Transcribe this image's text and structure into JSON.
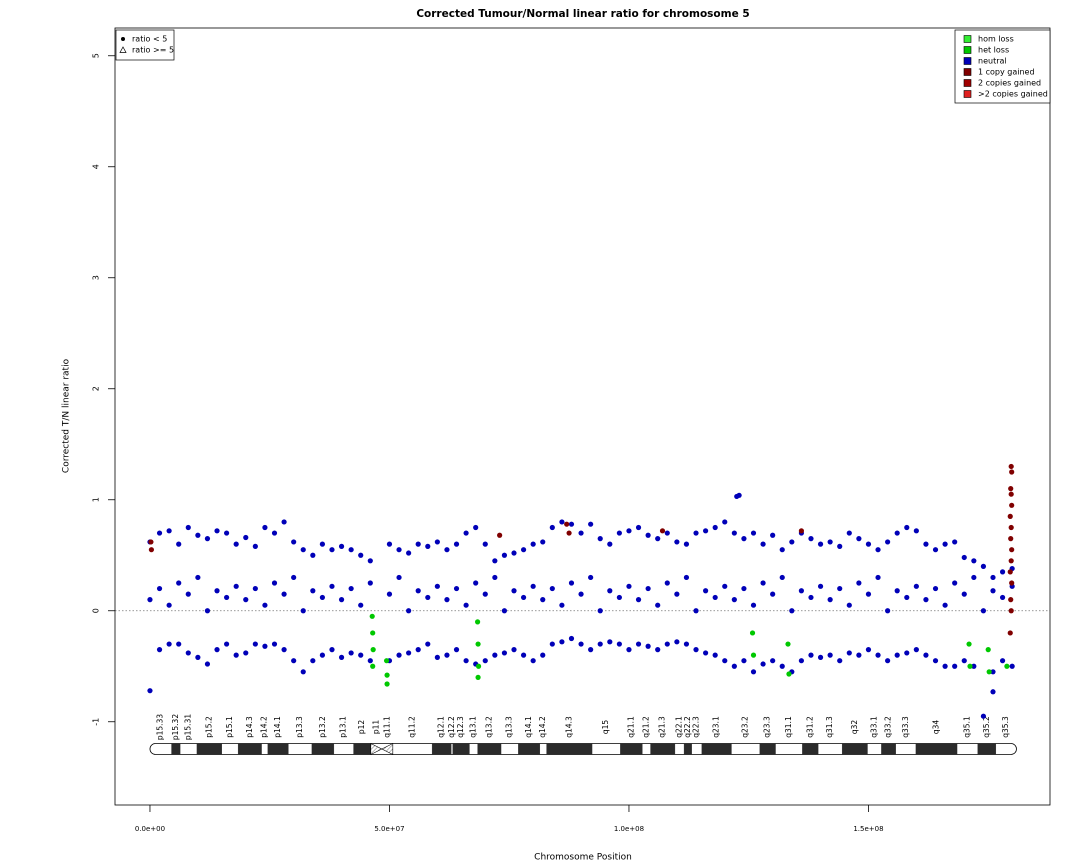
{
  "chart_data": {
    "type": "scatter",
    "title": "Corrected Tumour/Normal linear ratio for chromosome  5",
    "x_label": "Chromosome Position",
    "y_label": "Corrected T/N linear ratio",
    "xlim": [
      -7300000.0,
      187900000.0
    ],
    "ylim": [
      -1.75,
      5.25
    ],
    "xticks": [
      {
        "value": 0,
        "label": "0.0e+00"
      },
      {
        "value": 50000000.0,
        "label": "5.0e+07"
      },
      {
        "value": 100000000.0,
        "label": "1.0e+08"
      },
      {
        "value": 150000000.0,
        "label": "1.5e+08"
      }
    ],
    "yticks": [
      -1,
      0,
      1,
      2,
      3,
      4,
      5
    ],
    "hline": 0,
    "legend_position": "top-right",
    "shape_legend": {
      "position": "top-left",
      "items": [
        {
          "label": "ratio < 5",
          "shape": "dot"
        },
        {
          "label": "ratio >= 5",
          "shape": "triangle"
        }
      ]
    },
    "series": [
      {
        "name": "hom loss",
        "color": "#33ee33",
        "x": [],
        "values": []
      },
      {
        "name": "het loss",
        "color": "#00c800",
        "x": [
          46400000.0,
          46500000.0,
          46600000.0,
          46500000.0,
          49400000.0,
          49500000.0,
          49500000.0,
          68400000.0,
          68500000.0,
          68600000.0,
          68500000.0,
          125800000.0,
          126000000.0,
          133200000.0,
          133400000.0,
          171000000.0,
          171200000.0,
          175000000.0,
          175200000.0,
          178900000.0
        ],
        "values": [
          -0.05,
          -0.2,
          -0.35,
          -0.5,
          -0.45,
          -0.58,
          -0.66,
          -0.1,
          -0.3,
          -0.5,
          -0.6,
          -0.2,
          -0.4,
          -0.3,
          -0.57,
          -0.3,
          -0.5,
          -0.35,
          -0.55,
          -0.5
        ]
      },
      {
        "name": "neutral",
        "color": "#0000b8",
        "x": [
          0,
          2000000.0,
          4000000.0,
          6000000.0,
          8000000.0,
          10000000.0,
          12000000.0,
          14000000.0,
          16000000.0,
          18000000.0,
          20000000.0,
          22000000.0,
          24000000.0,
          26000000.0,
          28000000.0,
          30000000.0,
          32000000.0,
          34000000.0,
          36000000.0,
          38000000.0,
          40000000.0,
          42000000.0,
          44000000.0,
          46000000.0,
          50000000.0,
          52000000.0,
          54000000.0,
          56000000.0,
          58000000.0,
          60000000.0,
          62000000.0,
          64000000.0,
          66000000.0,
          68000000.0,
          70000000.0,
          72000000.0,
          74000000.0,
          76000000.0,
          78000000.0,
          80000000.0,
          82000000.0,
          84000000.0,
          86000000.0,
          88000000.0,
          90000000.0,
          92000000.0,
          94000000.0,
          96000000.0,
          98000000.0,
          100000000.0,
          102000000.0,
          104000000.0,
          106000000.0,
          108000000.0,
          110000000.0,
          112000000.0,
          114000000.0,
          116000000.0,
          118000000.0,
          120000000.0,
          122000000.0,
          124000000.0,
          126000000.0,
          128000000.0,
          130000000.0,
          132000000.0,
          134000000.0,
          136000000.0,
          138000000.0,
          140000000.0,
          142000000.0,
          144000000.0,
          146000000.0,
          148000000.0,
          150000000.0,
          152000000.0,
          154000000.0,
          156000000.0,
          158000000.0,
          160000000.0,
          162000000.0,
          164000000.0,
          166000000.0,
          168000000.0,
          170000000.0,
          172000000.0,
          174000000.0,
          176000000.0,
          178000000.0,
          180000000.0,
          0,
          2000000.0,
          4000000.0,
          6000000.0,
          8000000.0,
          10000000.0,
          12000000.0,
          14000000.0,
          16000000.0,
          18000000.0,
          20000000.0,
          22000000.0,
          24000000.0,
          26000000.0,
          28000000.0,
          30000000.0,
          32000000.0,
          34000000.0,
          36000000.0,
          38000000.0,
          40000000.0,
          42000000.0,
          44000000.0,
          46000000.0,
          50000000.0,
          52000000.0,
          54000000.0,
          56000000.0,
          58000000.0,
          60000000.0,
          62000000.0,
          64000000.0,
          66000000.0,
          68000000.0,
          70000000.0,
          72000000.0,
          74000000.0,
          76000000.0,
          78000000.0,
          80000000.0,
          82000000.0,
          84000000.0,
          86000000.0,
          88000000.0,
          90000000.0,
          92000000.0,
          94000000.0,
          96000000.0,
          98000000.0,
          100000000.0,
          102000000.0,
          104000000.0,
          106000000.0,
          108000000.0,
          110000000.0,
          112000000.0,
          114000000.0,
          116000000.0,
          118000000.0,
          120000000.0,
          122000000.0,
          124000000.0,
          126000000.0,
          128000000.0,
          130000000.0,
          132000000.0,
          134000000.0,
          136000000.0,
          138000000.0,
          140000000.0,
          142000000.0,
          144000000.0,
          146000000.0,
          148000000.0,
          150000000.0,
          152000000.0,
          154000000.0,
          156000000.0,
          158000000.0,
          160000000.0,
          162000000.0,
          164000000.0,
          166000000.0,
          168000000.0,
          170000000.0,
          172000000.0,
          174000000.0,
          176000000.0,
          178000000.0,
          180000000.0,
          0,
          2000000.0,
          4000000.0,
          6000000.0,
          8000000.0,
          10000000.0,
          12000000.0,
          14000000.0,
          16000000.0,
          18000000.0,
          20000000.0,
          22000000.0,
          24000000.0,
          26000000.0,
          28000000.0,
          30000000.0,
          32000000.0,
          34000000.0,
          36000000.0,
          38000000.0,
          40000000.0,
          42000000.0,
          44000000.0,
          46000000.0,
          50000000.0,
          52000000.0,
          54000000.0,
          56000000.0,
          58000000.0,
          60000000.0,
          62000000.0,
          64000000.0,
          66000000.0,
          68000000.0,
          70000000.0,
          72000000.0,
          74000000.0,
          76000000.0,
          78000000.0,
          80000000.0,
          82000000.0,
          84000000.0,
          86000000.0,
          88000000.0,
          90000000.0,
          92000000.0,
          94000000.0,
          96000000.0,
          98000000.0,
          100000000.0,
          102000000.0,
          104000000.0,
          106000000.0,
          108000000.0,
          110000000.0,
          112000000.0,
          114000000.0,
          116000000.0,
          118000000.0,
          120000000.0,
          122000000.0,
          124000000.0,
          126000000.0,
          128000000.0,
          130000000.0,
          132000000.0,
          134000000.0,
          136000000.0,
          138000000.0,
          140000000.0,
          142000000.0,
          144000000.0,
          146000000.0,
          148000000.0,
          150000000.0,
          152000000.0,
          154000000.0,
          156000000.0,
          158000000.0,
          160000000.0,
          162000000.0,
          164000000.0,
          166000000.0,
          168000000.0,
          170000000.0,
          172000000.0,
          174000000.0,
          176000000.0,
          178000000.0,
          180000000.0,
          122500000.0,
          123000000.0,
          176000000.0
        ],
        "values": [
          0.62,
          0.7,
          0.72,
          0.6,
          0.75,
          0.68,
          0.65,
          0.72,
          0.7,
          0.6,
          0.66,
          0.58,
          0.75,
          0.7,
          0.8,
          0.62,
          0.55,
          0.5,
          0.6,
          0.55,
          0.58,
          0.55,
          0.5,
          0.45,
          0.6,
          0.55,
          0.52,
          0.6,
          0.58,
          0.62,
          0.55,
          0.6,
          0.7,
          0.75,
          0.6,
          0.45,
          0.5,
          0.52,
          0.55,
          0.6,
          0.62,
          0.75,
          0.8,
          0.78,
          0.7,
          0.78,
          0.65,
          0.6,
          0.7,
          0.72,
          0.75,
          0.68,
          0.65,
          0.7,
          0.62,
          0.6,
          0.7,
          0.72,
          0.75,
          0.8,
          0.7,
          0.65,
          0.7,
          0.6,
          0.68,
          0.55,
          0.62,
          0.7,
          0.65,
          0.6,
          0.62,
          0.58,
          0.7,
          0.65,
          0.6,
          0.55,
          0.62,
          0.7,
          0.75,
          0.72,
          0.6,
          0.55,
          0.6,
          0.62,
          0.48,
          0.45,
          0.4,
          0.3,
          0.35,
          0.38,
          -0.72,
          -0.35,
          -0.3,
          -0.3,
          -0.38,
          -0.42,
          -0.48,
          -0.35,
          -0.3,
          -0.4,
          -0.38,
          -0.3,
          -0.32,
          -0.3,
          -0.35,
          -0.45,
          -0.55,
          -0.45,
          -0.4,
          -0.35,
          -0.42,
          -0.38,
          -0.4,
          -0.45,
          -0.45,
          -0.4,
          -0.38,
          -0.35,
          -0.3,
          -0.42,
          -0.4,
          -0.35,
          -0.45,
          -0.48,
          -0.45,
          -0.4,
          -0.38,
          -0.35,
          -0.4,
          -0.45,
          -0.4,
          -0.3,
          -0.28,
          -0.25,
          -0.3,
          -0.35,
          -0.3,
          -0.28,
          -0.3,
          -0.35,
          -0.3,
          -0.32,
          -0.35,
          -0.3,
          -0.28,
          -0.3,
          -0.35,
          -0.38,
          -0.4,
          -0.45,
          -0.5,
          -0.45,
          -0.55,
          -0.48,
          -0.45,
          -0.5,
          -0.55,
          -0.45,
          -0.4,
          -0.42,
          -0.4,
          -0.45,
          -0.38,
          -0.4,
          -0.35,
          -0.4,
          -0.45,
          -0.4,
          -0.38,
          -0.35,
          -0.4,
          -0.45,
          -0.5,
          -0.5,
          -0.45,
          -0.5,
          -0.95,
          -0.55,
          -0.45,
          -0.5,
          0.1,
          0.2,
          0.05,
          0.25,
          0.15,
          0.3,
          0.0,
          0.18,
          0.12,
          0.22,
          0.1,
          0.2,
          0.05,
          0.25,
          0.15,
          0.3,
          0.0,
          0.18,
          0.12,
          0.22,
          0.1,
          0.2,
          0.05,
          0.25,
          0.15,
          0.3,
          0.0,
          0.18,
          0.12,
          0.22,
          0.1,
          0.2,
          0.05,
          0.25,
          0.15,
          0.3,
          0.0,
          0.18,
          0.12,
          0.22,
          0.1,
          0.2,
          0.05,
          0.25,
          0.15,
          0.3,
          0.0,
          0.18,
          0.12,
          0.22,
          0.1,
          0.2,
          0.05,
          0.25,
          0.15,
          0.3,
          0.0,
          0.18,
          0.12,
          0.22,
          0.1,
          0.2,
          0.05,
          0.25,
          0.15,
          0.3,
          0.0,
          0.18,
          0.12,
          0.22,
          0.1,
          0.2,
          0.05,
          0.25,
          0.15,
          0.3,
          0.0,
          0.18,
          0.12,
          0.22,
          0.1,
          0.2,
          0.05,
          0.25,
          0.15,
          0.3,
          0.0,
          0.18,
          0.12,
          0.22,
          1.03,
          1.04,
          -0.73
        ]
      },
      {
        "name": "1 copy gained",
        "color": "#800000",
        "x": [
          200000,
          300000,
          73000000.0,
          87000000.0,
          87500000.0,
          107000000.0,
          136000000.0,
          179800000.0,
          179900000.0,
          179700000.0,
          179800000.0,
          179900000.0,
          179600000.0,
          179800000.0,
          179700000.0,
          179900000.0,
          179800000.0,
          179600000.0,
          179900000.0,
          179700000.0,
          179800000.0,
          179600000.0
        ],
        "values": [
          0.62,
          0.55,
          0.68,
          0.78,
          0.7,
          0.72,
          0.72,
          1.3,
          1.25,
          1.1,
          1.05,
          0.95,
          0.85,
          0.75,
          0.65,
          0.55,
          0.45,
          0.35,
          0.25,
          0.1,
          0.0,
          -0.2
        ]
      },
      {
        "name": "2 copies gained",
        "color": "#a00000",
        "x": [],
        "values": []
      },
      {
        "name": ">2 copies gained",
        "color": "#e02020",
        "x": [],
        "values": []
      }
    ],
    "ideogram": {
      "bands": [
        {
          "name": "p15.33",
          "start": 0,
          "end": 4500000.0,
          "stain": "gneg"
        },
        {
          "name": "p15.32",
          "start": 4500000.0,
          "end": 6300000.0,
          "stain": "gpos"
        },
        {
          "name": "p15.31",
          "start": 6300000.0,
          "end": 9800000.0,
          "stain": "gneg"
        },
        {
          "name": "p15.2",
          "start": 9800000.0,
          "end": 15000000.0,
          "stain": "gpos"
        },
        {
          "name": "p15.1",
          "start": 15000000.0,
          "end": 18400000.0,
          "stain": "gneg"
        },
        {
          "name": "p14.3",
          "start": 18400000.0,
          "end": 23300000.0,
          "stain": "gpos"
        },
        {
          "name": "p14.2",
          "start": 23300000.0,
          "end": 24600000.0,
          "stain": "gneg"
        },
        {
          "name": "p14.1",
          "start": 24600000.0,
          "end": 28900000.0,
          "stain": "gpos"
        },
        {
          "name": "p13.3",
          "start": 28900000.0,
          "end": 33800000.0,
          "stain": "gneg"
        },
        {
          "name": "p13.2",
          "start": 33800000.0,
          "end": 38400000.0,
          "stain": "gpos"
        },
        {
          "name": "p13.1",
          "start": 38400000.0,
          "end": 42500000.0,
          "stain": "gneg"
        },
        {
          "name": "p12",
          "start": 42500000.0,
          "end": 46100000.0,
          "stain": "gpos"
        },
        {
          "name": "p11",
          "start": 46100000.0,
          "end": 48400000.0,
          "stain": "acen"
        },
        {
          "name": "q11.1",
          "start": 48400000.0,
          "end": 50700000.0,
          "stain": "acen"
        },
        {
          "name": "q11.2",
          "start": 50700000.0,
          "end": 58900000.0,
          "stain": "gneg"
        },
        {
          "name": "q12.1",
          "start": 58900000.0,
          "end": 62900000.0,
          "stain": "gpos"
        },
        {
          "name": "q12.2",
          "start": 62900000.0,
          "end": 63200000.0,
          "stain": "gneg"
        },
        {
          "name": "q12.3",
          "start": 63200000.0,
          "end": 66700000.0,
          "stain": "gpos"
        },
        {
          "name": "q13.1",
          "start": 66700000.0,
          "end": 68400000.0,
          "stain": "gneg"
        },
        {
          "name": "q13.2",
          "start": 68400000.0,
          "end": 73300000.0,
          "stain": "gpos"
        },
        {
          "name": "q13.3",
          "start": 73300000.0,
          "end": 76900000.0,
          "stain": "gneg"
        },
        {
          "name": "q14.1",
          "start": 76900000.0,
          "end": 81400000.0,
          "stain": "gpos"
        },
        {
          "name": "q14.2",
          "start": 81400000.0,
          "end": 82800000.0,
          "stain": "gneg"
        },
        {
          "name": "q14.3",
          "start": 82800000.0,
          "end": 92300000.0,
          "stain": "gpos"
        },
        {
          "name": "q15",
          "start": 92300000.0,
          "end": 98200000.0,
          "stain": "gneg"
        },
        {
          "name": "q21.1",
          "start": 98200000.0,
          "end": 102800000.0,
          "stain": "gpos"
        },
        {
          "name": "q21.2",
          "start": 102800000.0,
          "end": 104500000.0,
          "stain": "gneg"
        },
        {
          "name": "q21.3",
          "start": 104500000.0,
          "end": 109600000.0,
          "stain": "gpos"
        },
        {
          "name": "q22.1",
          "start": 109600000.0,
          "end": 111500000.0,
          "stain": "gneg"
        },
        {
          "name": "q22.2",
          "start": 111500000.0,
          "end": 113100000.0,
          "stain": "gpos"
        },
        {
          "name": "q22.3",
          "start": 113100000.0,
          "end": 115200000.0,
          "stain": "gneg"
        },
        {
          "name": "q23.1",
          "start": 115200000.0,
          "end": 121400000.0,
          "stain": "gpos"
        },
        {
          "name": "q23.2",
          "start": 121400000.0,
          "end": 127300000.0,
          "stain": "gneg"
        },
        {
          "name": "q23.3",
          "start": 127300000.0,
          "end": 130600000.0,
          "stain": "gpos"
        },
        {
          "name": "q31.1",
          "start": 130600000.0,
          "end": 136200000.0,
          "stain": "gneg"
        },
        {
          "name": "q31.2",
          "start": 136200000.0,
          "end": 139500000.0,
          "stain": "gpos"
        },
        {
          "name": "q31.3",
          "start": 139500000.0,
          "end": 144500000.0,
          "stain": "gneg"
        },
        {
          "name": "q32",
          "start": 144500000.0,
          "end": 149800000.0,
          "stain": "gpos"
        },
        {
          "name": "q33.1",
          "start": 149800000.0,
          "end": 152700000.0,
          "stain": "gneg"
        },
        {
          "name": "q33.2",
          "start": 152700000.0,
          "end": 155700000.0,
          "stain": "gpos"
        },
        {
          "name": "q33.3",
          "start": 155700000.0,
          "end": 159900000.0,
          "stain": "gneg"
        },
        {
          "name": "q34",
          "start": 159900000.0,
          "end": 168500000.0,
          "stain": "gpos"
        },
        {
          "name": "q35.1",
          "start": 168500000.0,
          "end": 172800000.0,
          "stain": "gneg"
        },
        {
          "name": "q35.2",
          "start": 172800000.0,
          "end": 176600000.0,
          "stain": "gpos"
        },
        {
          "name": "q35.3",
          "start": 176600000.0,
          "end": 180900000.0,
          "stain": "gneg"
        }
      ]
    }
  }
}
